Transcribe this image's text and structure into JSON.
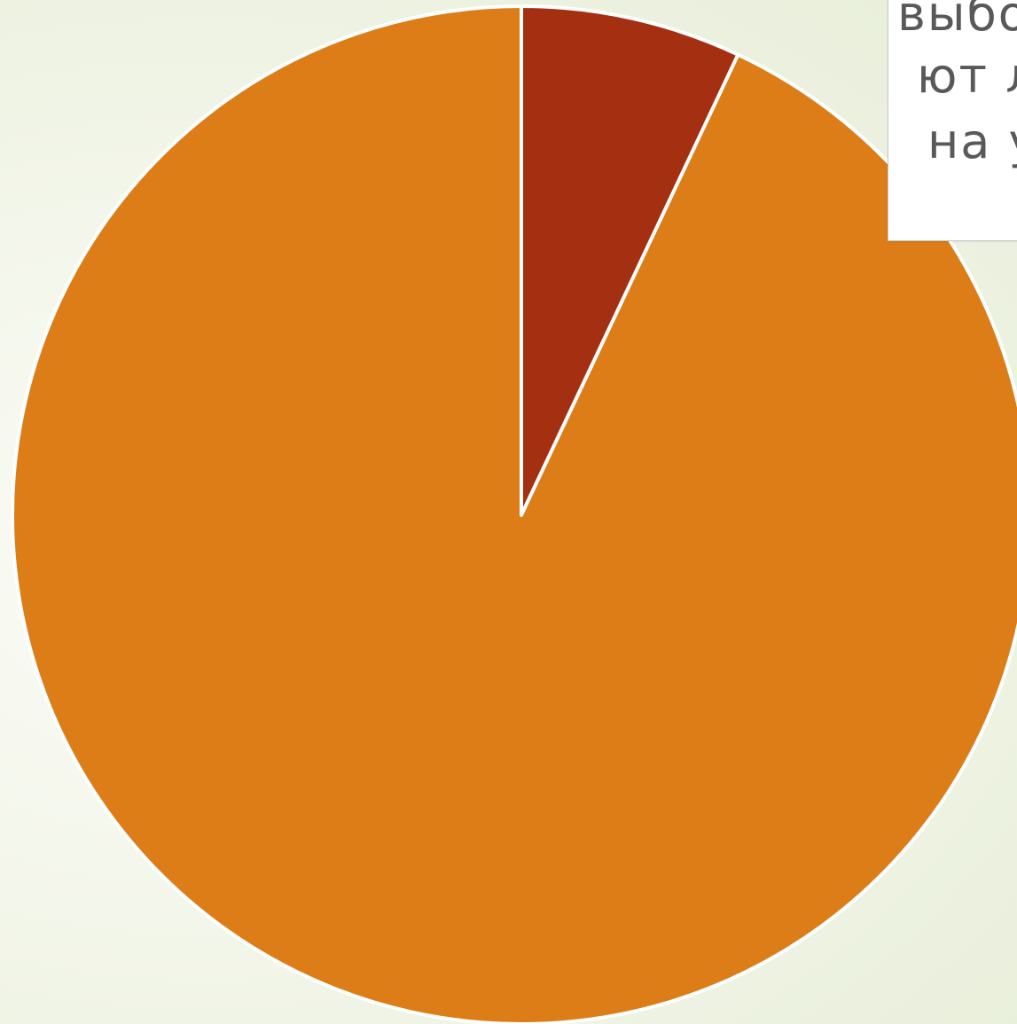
{
  "chart_data": {
    "type": "pie",
    "slices": [
      {
        "value": 7,
        "color": "#a52f11"
      },
      {
        "value": 93,
        "color": "#dc7d18"
      }
    ],
    "start_angle_deg": 0,
    "direction": "clockwise",
    "slice_border_color": "#ffffff"
  },
  "callout": {
    "lines": [
      "выбор",
      "ют л",
      "на у"
    ]
  }
}
